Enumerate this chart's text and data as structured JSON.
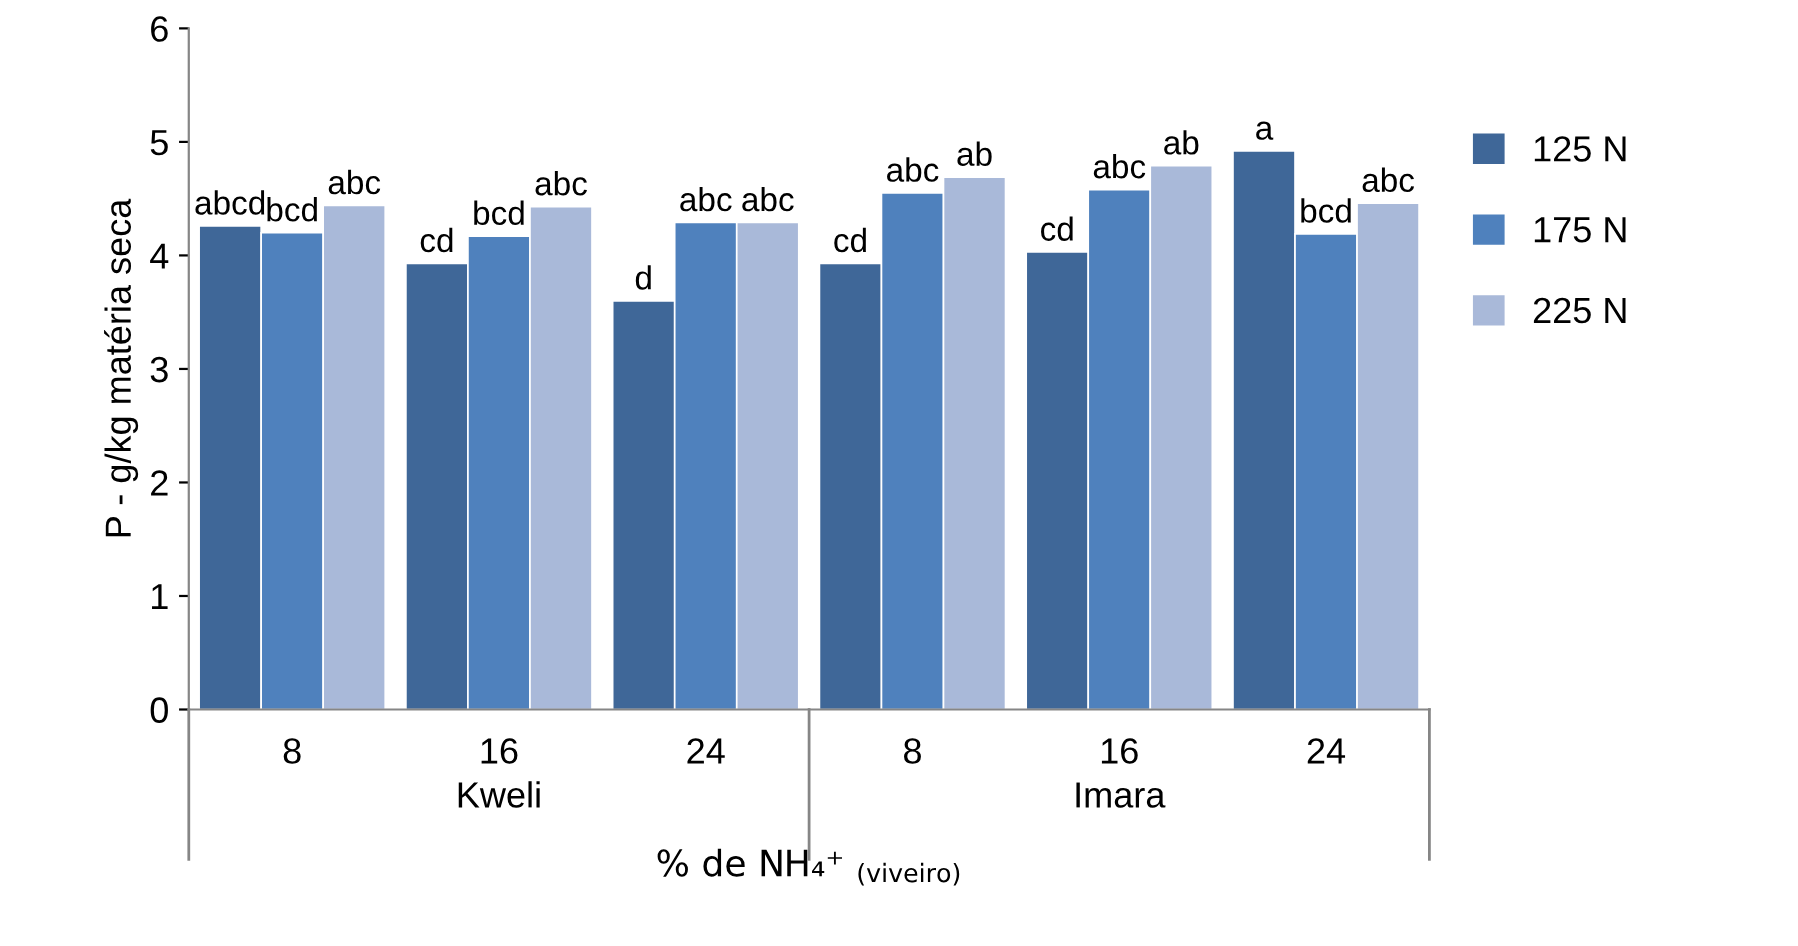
{
  "chart_data": {
    "type": "bar",
    "ylabel": "P - g/kg matéria seca",
    "xlabel": "% de NH₄⁺ $_{(viveiro)}$",
    "categories": [
      "8",
      "16",
      "24",
      "8",
      "16",
      "24"
    ],
    "annotations": [
      "Kweli",
      "Imara"
    ],
    "series": [
      {
        "name": "125 N",
        "color": "#3f6798",
        "values": [
          4.26,
          3.93,
          3.6,
          3.93,
          4.03,
          4.92
        ],
        "value_labels": [
          "abcd",
          "cd",
          "d",
          "cd",
          "cd",
          "a"
        ]
      },
      {
        "name": "175 N",
        "color": "#4f81bd",
        "values": [
          4.2,
          4.17,
          4.29,
          4.55,
          4.58,
          4.19
        ],
        "value_labels": [
          "bcd",
          "bcd",
          "abc",
          "abc",
          "abc",
          "bcd"
        ]
      },
      {
        "name": "225 N",
        "color": "#a9b9d9",
        "values": [
          4.44,
          4.43,
          4.29,
          4.69,
          4.79,
          4.46
        ],
        "value_labels": [
          "abc",
          "abc",
          "abc",
          "ab",
          "ab",
          "abc"
        ]
      }
    ],
    "ylim": [
      0,
      6
    ],
    "yticks": [
      0,
      1,
      2,
      3,
      4,
      5,
      6
    ],
    "grid": false,
    "legend": "right"
  }
}
